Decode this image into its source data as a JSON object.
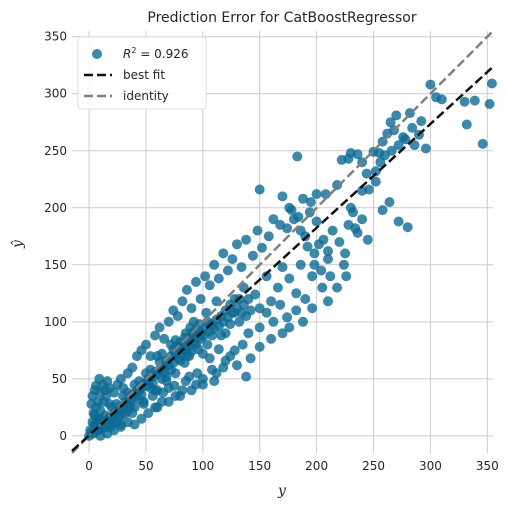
{
  "chart_data": {
    "type": "scatter",
    "title": "Prediction Error for CatBoostRegressor",
    "xlabel": "y",
    "ylabel": "ŷ",
    "xlim": [
      -15,
      355
    ],
    "ylim": [
      -15,
      355
    ],
    "xticks": [
      0,
      50,
      100,
      150,
      200,
      250,
      300,
      350
    ],
    "yticks": [
      0,
      50,
      100,
      150,
      200,
      250,
      300,
      350
    ],
    "grid": true,
    "legend_position": "top-left",
    "legend": {
      "points_label": "R",
      "points_label_sup": "2",
      "points_label_value": " = 0.926",
      "best_fit_label": "best fit",
      "identity_label": "identity"
    },
    "best_fit": {
      "slope": 0.91,
      "intercept": 0.5
    },
    "colors": {
      "points": "#0e6a93",
      "best_fit": "#111111",
      "identity": "#808080",
      "grid": "#cccccc"
    },
    "points": [
      [
        150,
        216
      ],
      [
        183,
        245
      ],
      [
        200,
        212
      ],
      [
        208,
        212
      ],
      [
        218,
        220
      ],
      [
        222,
        242
      ],
      [
        228,
        243
      ],
      [
        230,
        248
      ],
      [
        236,
        247
      ],
      [
        240,
        240
      ],
      [
        246,
        216
      ],
      [
        250,
        249
      ],
      [
        255,
        248
      ],
      [
        258,
        258
      ],
      [
        262,
        265
      ],
      [
        265,
        275
      ],
      [
        268,
        268
      ],
      [
        270,
        281
      ],
      [
        278,
        260
      ],
      [
        282,
        283
      ],
      [
        286,
        255
      ],
      [
        290,
        264
      ],
      [
        296,
        252
      ],
      [
        300,
        308
      ],
      [
        305,
        297
      ],
      [
        310,
        295
      ],
      [
        330,
        293
      ],
      [
        332,
        273
      ],
      [
        339,
        294
      ],
      [
        346,
        256
      ],
      [
        352,
        291
      ],
      [
        354,
        309
      ],
      [
        170,
        210
      ],
      [
        176,
        200
      ],
      [
        180,
        190
      ],
      [
        186,
        180
      ],
      [
        190,
        175
      ],
      [
        195,
        205
      ],
      [
        198,
        160
      ],
      [
        202,
        168
      ],
      [
        206,
        172
      ],
      [
        210,
        155
      ],
      [
        214,
        180
      ],
      [
        220,
        170
      ],
      [
        224,
        150
      ],
      [
        228,
        185
      ],
      [
        232,
        196
      ],
      [
        236,
        178
      ],
      [
        240,
        190
      ],
      [
        245,
        172
      ],
      [
        252,
        223
      ],
      [
        258,
        198
      ],
      [
        264,
        205
      ],
      [
        272,
        188
      ],
      [
        280,
        183
      ],
      [
        230,
        200
      ],
      [
        225,
        160
      ],
      [
        212,
        140
      ],
      [
        205,
        130
      ],
      [
        196,
        140
      ],
      [
        190,
        120
      ],
      [
        182,
        125
      ],
      [
        176,
        138
      ],
      [
        170,
        148
      ],
      [
        166,
        130
      ],
      [
        160,
        118
      ],
      [
        156,
        140
      ],
      [
        150,
        112
      ],
      [
        146,
        124
      ],
      [
        142,
        110
      ],
      [
        136,
        130
      ],
      [
        132,
        120
      ],
      [
        128,
        108
      ],
      [
        124,
        98
      ],
      [
        120,
        90
      ],
      [
        116,
        105
      ],
      [
        112,
        118
      ],
      [
        108,
        88
      ],
      [
        104,
        80
      ],
      [
        100,
        72
      ],
      [
        96,
        92
      ],
      [
        92,
        100
      ],
      [
        88,
        70
      ],
      [
        84,
        64
      ],
      [
        80,
        78
      ],
      [
        76,
        55
      ],
      [
        72,
        58
      ],
      [
        68,
        48
      ],
      [
        64,
        60
      ],
      [
        60,
        40
      ],
      [
        56,
        35
      ],
      [
        52,
        45
      ],
      [
        48,
        28
      ],
      [
        44,
        40
      ],
      [
        40,
        25
      ],
      [
        36,
        30
      ],
      [
        32,
        20
      ],
      [
        28,
        18
      ],
      [
        24,
        22
      ],
      [
        20,
        12
      ],
      [
        16,
        10
      ],
      [
        12,
        8
      ],
      [
        8,
        5
      ],
      [
        4,
        2
      ],
      [
        2,
        3
      ],
      [
        0,
        0
      ],
      [
        1,
        5
      ],
      [
        3,
        12
      ],
      [
        5,
        18
      ],
      [
        6,
        25
      ],
      [
        2,
        28
      ],
      [
        4,
        20
      ],
      [
        7,
        15
      ],
      [
        10,
        22
      ],
      [
        13,
        30
      ],
      [
        15,
        35
      ],
      [
        18,
        28
      ],
      [
        22,
        38
      ],
      [
        25,
        45
      ],
      [
        28,
        50
      ],
      [
        30,
        42
      ],
      [
        34,
        55
      ],
      [
        38,
        60
      ],
      [
        42,
        70
      ],
      [
        46,
        75
      ],
      [
        50,
        80
      ],
      [
        54,
        70
      ],
      [
        58,
        88
      ],
      [
        62,
        95
      ],
      [
        66,
        85
      ],
      [
        70,
        100
      ],
      [
        74,
        110
      ],
      [
        78,
        105
      ],
      [
        82,
        118
      ],
      [
        86,
        128
      ],
      [
        90,
        112
      ],
      [
        94,
        135
      ],
      [
        98,
        120
      ],
      [
        102,
        140
      ],
      [
        106,
        132
      ],
      [
        110,
        150
      ],
      [
        114,
        138
      ],
      [
        118,
        160
      ],
      [
        122,
        145
      ],
      [
        126,
        155
      ],
      [
        130,
        168
      ],
      [
        134,
        148
      ],
      [
        138,
        172
      ],
      [
        144,
        158
      ],
      [
        148,
        180
      ],
      [
        152,
        165
      ],
      [
        158,
        175
      ],
      [
        162,
        190
      ],
      [
        168,
        185
      ],
      [
        174,
        182
      ],
      [
        178,
        198
      ],
      [
        184,
        192
      ],
      [
        188,
        208
      ],
      [
        194,
        196
      ],
      [
        200,
        188
      ],
      [
        130,
        62
      ],
      [
        124,
        70
      ],
      [
        118,
        60
      ],
      [
        112,
        55
      ],
      [
        106,
        68
      ],
      [
        100,
        50
      ],
      [
        94,
        45
      ],
      [
        88,
        52
      ],
      [
        82,
        40
      ],
      [
        76,
        35
      ],
      [
        70,
        42
      ],
      [
        64,
        30
      ],
      [
        58,
        25
      ],
      [
        52,
        20
      ],
      [
        46,
        15
      ],
      [
        40,
        10
      ],
      [
        34,
        12
      ],
      [
        28,
        8
      ],
      [
        22,
        5
      ],
      [
        16,
        2
      ],
      [
        10,
        0
      ],
      [
        140,
        90
      ],
      [
        135,
        80
      ],
      [
        128,
        75
      ],
      [
        120,
        66
      ],
      [
        114,
        76
      ],
      [
        108,
        58
      ],
      [
        150,
        95
      ],
      [
        156,
        108
      ],
      [
        162,
        100
      ],
      [
        168,
        115
      ],
      [
        174,
        104
      ],
      [
        186,
        150
      ],
      [
        192,
        166
      ],
      [
        198,
        150
      ],
      [
        204,
        145
      ],
      [
        210,
        162
      ],
      [
        218,
        130
      ],
      [
        226,
        140
      ],
      [
        234,
        182
      ],
      [
        60,
        70
      ],
      [
        62,
        65
      ],
      [
        64,
        72
      ],
      [
        66,
        60
      ],
      [
        68,
        66
      ],
      [
        70,
        62
      ],
      [
        72,
        70
      ],
      [
        74,
        64
      ],
      [
        76,
        72
      ],
      [
        78,
        68
      ],
      [
        80,
        66
      ],
      [
        82,
        72
      ],
      [
        84,
        75
      ],
      [
        86,
        70
      ],
      [
        88,
        78
      ],
      [
        90,
        74
      ],
      [
        92,
        82
      ],
      [
        94,
        80
      ],
      [
        96,
        76
      ],
      [
        98,
        85
      ],
      [
        50,
        55
      ],
      [
        52,
        50
      ],
      [
        54,
        58
      ],
      [
        56,
        52
      ],
      [
        58,
        56
      ],
      [
        60,
        54
      ],
      [
        62,
        58
      ],
      [
        64,
        50
      ],
      [
        66,
        55
      ],
      [
        68,
        52
      ],
      [
        40,
        45
      ],
      [
        42,
        40
      ],
      [
        44,
        48
      ],
      [
        46,
        42
      ],
      [
        48,
        46
      ],
      [
        50,
        44
      ],
      [
        52,
        48
      ],
      [
        54,
        42
      ],
      [
        56,
        46
      ],
      [
        58,
        40
      ],
      [
        30,
        35
      ],
      [
        32,
        30
      ],
      [
        34,
        38
      ],
      [
        36,
        32
      ],
      [
        38,
        36
      ],
      [
        40,
        34
      ],
      [
        42,
        38
      ],
      [
        44,
        32
      ],
      [
        46,
        36
      ],
      [
        48,
        30
      ],
      [
        20,
        25
      ],
      [
        22,
        20
      ],
      [
        24,
        28
      ],
      [
        26,
        22
      ],
      [
        28,
        26
      ],
      [
        30,
        24
      ],
      [
        32,
        28
      ],
      [
        34,
        22
      ],
      [
        36,
        26
      ],
      [
        38,
        20
      ],
      [
        10,
        15
      ],
      [
        12,
        10
      ],
      [
        14,
        18
      ],
      [
        16,
        12
      ],
      [
        18,
        16
      ],
      [
        20,
        14
      ],
      [
        22,
        18
      ],
      [
        24,
        12
      ],
      [
        26,
        16
      ],
      [
        28,
        10
      ],
      [
        5,
        10
      ],
      [
        6,
        6
      ],
      [
        7,
        12
      ],
      [
        8,
        8
      ],
      [
        9,
        14
      ],
      [
        11,
        6
      ],
      [
        13,
        12
      ],
      [
        15,
        8
      ],
      [
        17,
        14
      ],
      [
        19,
        8
      ],
      [
        102,
        95
      ],
      [
        104,
        100
      ],
      [
        106,
        92
      ],
      [
        108,
        98
      ],
      [
        110,
        94
      ],
      [
        112,
        102
      ],
      [
        114,
        96
      ],
      [
        116,
        88
      ],
      [
        118,
        100
      ],
      [
        120,
        110
      ],
      [
        122,
        104
      ],
      [
        124,
        115
      ],
      [
        126,
        108
      ],
      [
        128,
        120
      ],
      [
        130,
        112
      ],
      [
        132,
        100
      ],
      [
        134,
        108
      ],
      [
        136,
        115
      ],
      [
        138,
        105
      ],
      [
        140,
        120
      ],
      [
        85,
        90
      ],
      [
        87,
        85
      ],
      [
        89,
        95
      ],
      [
        91,
        88
      ],
      [
        93,
        92
      ],
      [
        95,
        86
      ],
      [
        97,
        98
      ],
      [
        99,
        90
      ],
      [
        101,
        88
      ],
      [
        103,
        108
      ],
      [
        72,
        80
      ],
      [
        74,
        76
      ],
      [
        76,
        84
      ],
      [
        78,
        78
      ],
      [
        80,
        82
      ],
      [
        82,
        76
      ],
      [
        84,
        86
      ],
      [
        86,
        80
      ],
      [
        88,
        84
      ],
      [
        90,
        90
      ],
      [
        3,
        35
      ],
      [
        5,
        40
      ],
      [
        8,
        30
      ],
      [
        10,
        38
      ],
      [
        12,
        45
      ],
      [
        14,
        40
      ],
      [
        16,
        48
      ],
      [
        18,
        42
      ],
      [
        6,
        44
      ],
      [
        9,
        50
      ],
      [
        60,
        25
      ],
      [
        70,
        30
      ],
      [
        80,
        35
      ],
      [
        90,
        40
      ],
      [
        100,
        45
      ],
      [
        110,
        48
      ],
      [
        95,
        55
      ],
      [
        85,
        48
      ],
      [
        75,
        44
      ],
      [
        65,
        38
      ],
      [
        142,
        68
      ],
      [
        138,
        52
      ],
      [
        150,
        78
      ],
      [
        160,
        85
      ],
      [
        170,
        90
      ],
      [
        176,
        95
      ],
      [
        182,
        110
      ],
      [
        188,
        100
      ],
      [
        196,
        112
      ],
      [
        210,
        118
      ],
      [
        240,
        215
      ],
      [
        244,
        230
      ],
      [
        252,
        232
      ],
      [
        256,
        240
      ],
      [
        260,
        246
      ],
      [
        266,
        250
      ],
      [
        272,
        255
      ],
      [
        276,
        262
      ],
      [
        284,
        270
      ],
      [
        292,
        276
      ]
    ]
  }
}
